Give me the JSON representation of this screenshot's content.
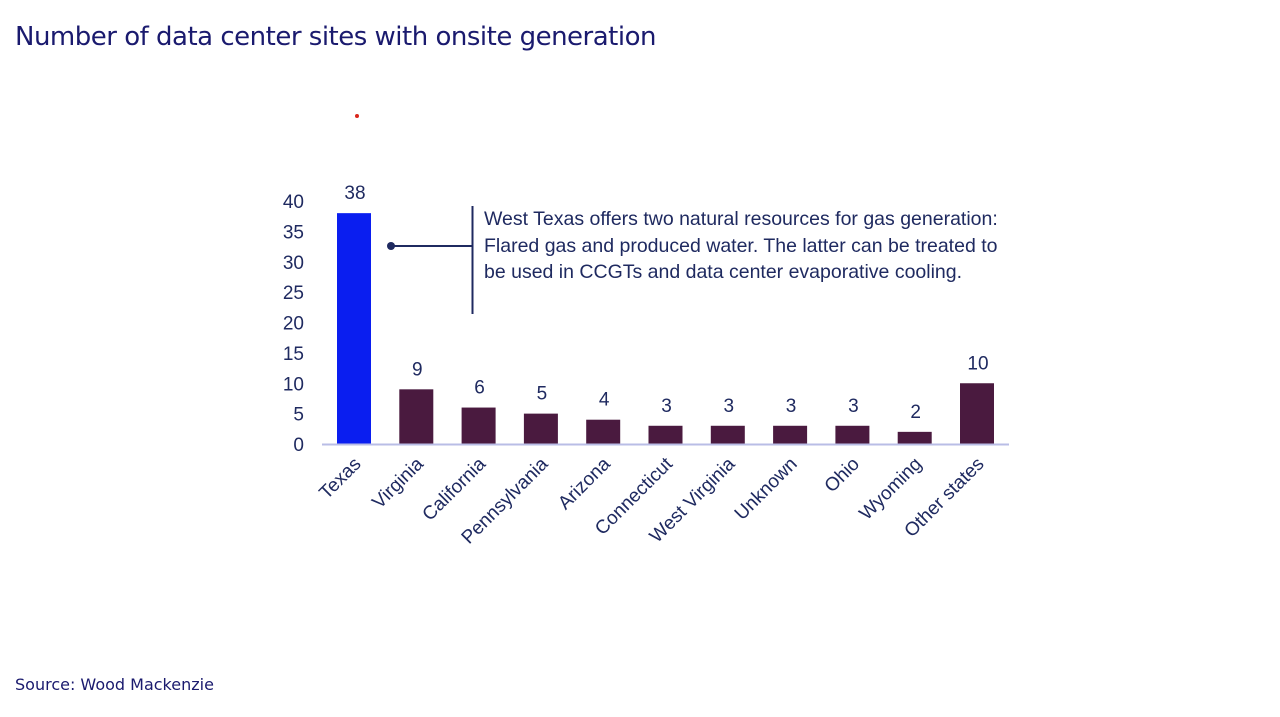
{
  "title": "Number of data center sites with onsite generation",
  "source": "Source: Wood Mackenzie",
  "annotation": "West Texas offers two natural resources for gas generation: Flared gas and produced water. The latter can be treated to be used in CCGTs and data center evaporative cooling.",
  "colors": {
    "highlight": "#0a1ef0",
    "bar": "#4a1a3f",
    "axis": "#b9bde6",
    "text": "#1f2a60",
    "title": "#1a1a6e"
  },
  "chart_data": {
    "type": "bar",
    "title": "Number of data center sites with onsite generation",
    "xlabel": "",
    "ylabel": "",
    "ylim": [
      0,
      40
    ],
    "yticks": [
      0,
      5,
      10,
      15,
      20,
      25,
      30,
      35,
      40
    ],
    "grid": false,
    "categories": [
      "Texas",
      "Virginia",
      "California",
      "Pennsylvania",
      "Arizona",
      "Connecticut",
      "West Virginia",
      "Unknown",
      "Ohio",
      "Wyoming",
      "Other states"
    ],
    "values": [
      38,
      9,
      6,
      5,
      4,
      3,
      3,
      3,
      3,
      2,
      10
    ],
    "highlight_category": "Texas",
    "data_labels": true,
    "annotations": [
      {
        "target": "Texas",
        "text": "West Texas offers two natural resources for gas generation: Flared gas and produced water. The latter can be treated to be used in CCGTs and data center evaporative cooling."
      }
    ]
  }
}
